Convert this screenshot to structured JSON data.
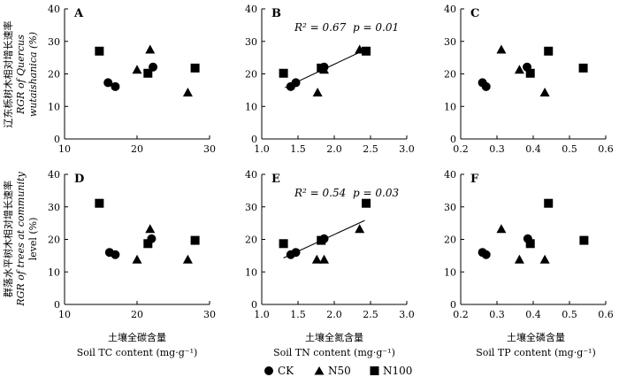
{
  "y_axis_labels": {
    "row1": [
      "辽东栎树木相对增长速率",
      "RGR of Quercus",
      "wutaishanica (%)"
    ],
    "row2": [
      "群落水平树木相对增长速率",
      "RGR of trees at community",
      "level (%)"
    ]
  },
  "x_axis_labels": [
    {
      "cn": "土壤全碳含量",
      "en": "Soil TC content (mg·g⁻¹)"
    },
    {
      "cn": "土壤全氮含量",
      "en": "Soil TN content (mg·g⁻¹)"
    },
    {
      "cn": "土壤全磷含量",
      "en": "Soil TP content (mg·g⁻¹)"
    }
  ],
  "legend": [
    {
      "name": "CK",
      "marker": "circle"
    },
    {
      "name": "N50",
      "marker": "triangle"
    },
    {
      "name": "N100",
      "marker": "square"
    }
  ],
  "chart_data": [
    {
      "panel": "A",
      "type": "scatter",
      "xlim": [
        10,
        30
      ],
      "xticks": [
        "10",
        "20",
        "30"
      ],
      "xtickvals": [
        10,
        20,
        30
      ],
      "ylim": [
        0,
        40
      ],
      "yticks": [
        "0",
        "10",
        "20",
        "30",
        "40"
      ],
      "ytickvals": [
        0,
        10,
        20,
        30,
        40
      ],
      "series": [
        {
          "name": "CK",
          "marker": "circle",
          "x": [
            16.0,
            17.0,
            22.2
          ],
          "y": [
            17.3,
            16.1,
            22.1
          ]
        },
        {
          "name": "N50",
          "marker": "triangle",
          "x": [
            20.0,
            21.8,
            27.0
          ],
          "y": [
            21.3,
            27.5,
            14.3
          ]
        },
        {
          "name": "N100",
          "marker": "square",
          "x": [
            14.8,
            21.5,
            28.0
          ],
          "y": [
            27.0,
            20.2,
            21.8
          ]
        }
      ]
    },
    {
      "panel": "B",
      "type": "scatter",
      "xlim": [
        1.0,
        3.0
      ],
      "xticks": [
        "1.0",
        "1.5",
        "2.0",
        "2.5",
        "3.0"
      ],
      "xtickvals": [
        1.0,
        1.5,
        2.0,
        2.5,
        3.0
      ],
      "ylim": [
        0,
        40
      ],
      "yticks": [
        "0",
        "10",
        "20",
        "30",
        "40"
      ],
      "ytickvals": [
        0,
        10,
        20,
        30,
        40
      ],
      "stat": {
        "r2_label": "R² = 0.67",
        "p_label": "p = 0.01"
      },
      "trendline": {
        "x": [
          1.32,
          2.45
        ],
        "y": [
          15.8,
          27.7
        ]
      },
      "series": [
        {
          "name": "CK",
          "marker": "circle",
          "x": [
            1.4,
            1.47,
            1.86
          ],
          "y": [
            16.1,
            17.3,
            22.1
          ]
        },
        {
          "name": "N50",
          "marker": "triangle",
          "x": [
            1.77,
            1.86,
            2.35
          ],
          "y": [
            14.3,
            21.3,
            27.5
          ]
        },
        {
          "name": "N100",
          "marker": "square",
          "x": [
            1.3,
            1.82,
            2.44
          ],
          "y": [
            20.2,
            21.8,
            27.0
          ]
        }
      ]
    },
    {
      "panel": "C",
      "type": "scatter",
      "xlim": [
        0.2,
        0.6
      ],
      "xticks": [
        "0.2",
        "0.3",
        "0.4",
        "0.5",
        "0.6"
      ],
      "xtickvals": [
        0.2,
        0.3,
        0.4,
        0.5,
        0.6
      ],
      "ylim": [
        0,
        40
      ],
      "yticks": [
        "0",
        "10",
        "20",
        "30",
        "40"
      ],
      "ytickvals": [
        0,
        10,
        20,
        30,
        40
      ],
      "series": [
        {
          "name": "CK",
          "marker": "circle",
          "x": [
            0.26,
            0.27,
            0.383
          ],
          "y": [
            17.3,
            16.1,
            22.1
          ]
        },
        {
          "name": "N50",
          "marker": "triangle",
          "x": [
            0.312,
            0.362,
            0.432
          ],
          "y": [
            27.5,
            21.3,
            14.3
          ]
        },
        {
          "name": "N100",
          "marker": "square",
          "x": [
            0.392,
            0.442,
            0.538
          ],
          "y": [
            20.2,
            27.0,
            21.8
          ]
        }
      ]
    },
    {
      "panel": "D",
      "type": "scatter",
      "xlim": [
        10,
        30
      ],
      "xticks": [
        "10",
        "20",
        "30"
      ],
      "xtickvals": [
        10,
        20,
        30
      ],
      "ylim": [
        0,
        40
      ],
      "yticks": [
        "0",
        "10",
        "20",
        "30",
        "40"
      ],
      "ytickvals": [
        0,
        10,
        20,
        30,
        40
      ],
      "series": [
        {
          "name": "CK",
          "marker": "circle",
          "x": [
            16.2,
            17.0,
            22.0
          ],
          "y": [
            16.0,
            15.3,
            20.2
          ]
        },
        {
          "name": "N50",
          "marker": "triangle",
          "x": [
            20.0,
            21.8,
            27.0
          ],
          "y": [
            13.8,
            23.2,
            13.8
          ]
        },
        {
          "name": "N100",
          "marker": "square",
          "x": [
            14.8,
            21.5,
            28.0
          ],
          "y": [
            31.1,
            18.7,
            19.7
          ]
        }
      ]
    },
    {
      "panel": "E",
      "type": "scatter",
      "xlim": [
        1.0,
        3.0
      ],
      "xticks": [
        "1.0",
        "1.5",
        "2.0",
        "2.5",
        "3.0"
      ],
      "xtickvals": [
        1.0,
        1.5,
        2.0,
        2.5,
        3.0
      ],
      "ylim": [
        0,
        40
      ],
      "yticks": [
        "0",
        "10",
        "20",
        "30",
        "40"
      ],
      "ytickvals": [
        0,
        10,
        20,
        30,
        40
      ],
      "stat": {
        "r2_label": "R² = 0.54",
        "p_label": "p = 0.03"
      },
      "trendline": {
        "x": [
          1.3,
          2.42
        ],
        "y": [
          14.3,
          25.8
        ]
      },
      "series": [
        {
          "name": "CK",
          "marker": "circle",
          "x": [
            1.4,
            1.47,
            1.86
          ],
          "y": [
            15.3,
            16.0,
            20.2
          ]
        },
        {
          "name": "N50",
          "marker": "triangle",
          "x": [
            1.76,
            1.86,
            2.35
          ],
          "y": [
            13.8,
            13.8,
            23.2
          ]
        },
        {
          "name": "N100",
          "marker": "square",
          "x": [
            1.3,
            1.82,
            2.44
          ],
          "y": [
            18.7,
            19.7,
            31.1
          ]
        }
      ]
    },
    {
      "panel": "F",
      "type": "scatter",
      "xlim": [
        0.2,
        0.6
      ],
      "xticks": [
        "0.2",
        "0.3",
        "0.4",
        "0.5",
        "0.6"
      ],
      "xtickvals": [
        0.2,
        0.3,
        0.4,
        0.5,
        0.6
      ],
      "ylim": [
        0,
        40
      ],
      "yticks": [
        "0",
        "10",
        "20",
        "30",
        "40"
      ],
      "ytickvals": [
        0,
        10,
        20,
        30,
        40
      ],
      "series": [
        {
          "name": "CK",
          "marker": "circle",
          "x": [
            0.26,
            0.27,
            0.385
          ],
          "y": [
            16.0,
            15.3,
            20.2
          ]
        },
        {
          "name": "N50",
          "marker": "triangle",
          "x": [
            0.312,
            0.362,
            0.432
          ],
          "y": [
            23.2,
            13.8,
            13.8
          ]
        },
        {
          "name": "N100",
          "marker": "square",
          "x": [
            0.392,
            0.442,
            0.54
          ],
          "y": [
            18.7,
            31.1,
            19.7
          ]
        }
      ]
    }
  ]
}
